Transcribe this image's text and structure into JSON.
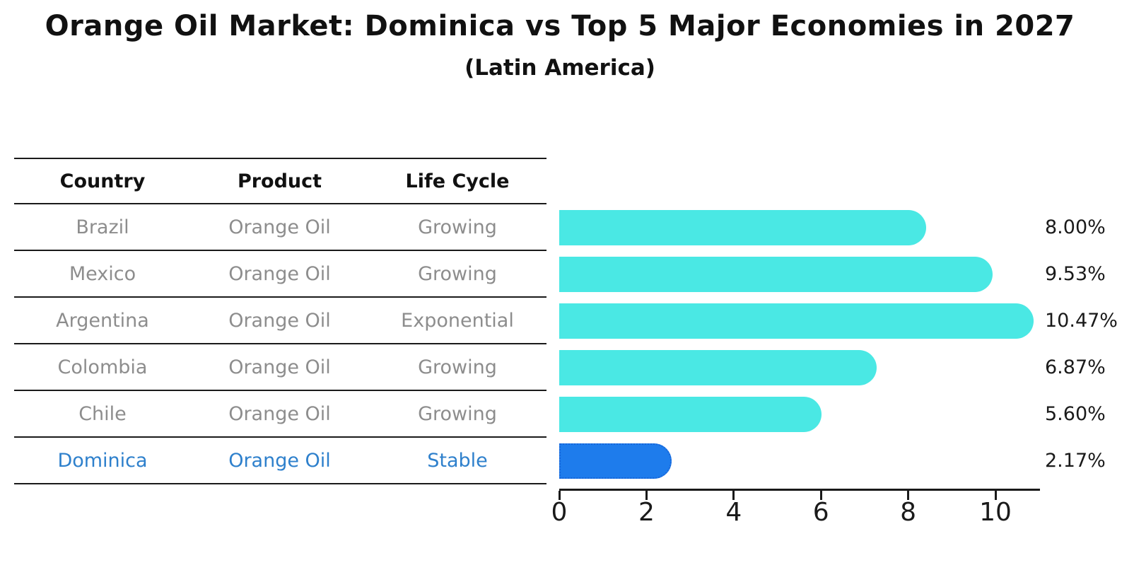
{
  "title": "Orange Oil Market: Dominica vs Top 5 Major Economies in 2027",
  "subtitle": "(Latin America)",
  "table": {
    "headers": [
      "Country",
      "Product",
      "Life Cycle"
    ],
    "rows": [
      {
        "country": "Brazil",
        "product": "Orange Oil",
        "life_cycle": "Growing",
        "highlight": false
      },
      {
        "country": "Mexico",
        "product": "Orange Oil",
        "life_cycle": "Growing",
        "highlight": false
      },
      {
        "country": "Argentina",
        "product": "Orange Oil",
        "life_cycle": "Exponential",
        "highlight": false
      },
      {
        "country": "Colombia",
        "product": "Orange Oil",
        "life_cycle": "Growing",
        "highlight": false
      },
      {
        "country": "Chile",
        "product": "Orange Oil",
        "life_cycle": "Growing",
        "highlight": false
      },
      {
        "country": "Dominica",
        "product": "Orange Oil",
        "life_cycle": "Stable",
        "highlight": true
      }
    ]
  },
  "chart_data": {
    "type": "bar",
    "orientation": "horizontal",
    "title": "Orange Oil Market: Dominica vs Top 5 Major Economies in 2027",
    "subtitle": "(Latin America)",
    "categories": [
      "Brazil",
      "Mexico",
      "Argentina",
      "Colombia",
      "Chile",
      "Dominica"
    ],
    "values": [
      8.0,
      9.53,
      10.47,
      6.87,
      5.6,
      2.17
    ],
    "value_labels": [
      "8.00%",
      "9.53%",
      "10.47%",
      "6.87%",
      "5.60%",
      "2.17%"
    ],
    "highlight_index": 5,
    "x_ticks": [
      "0",
      "2",
      "4",
      "6",
      "8",
      "10"
    ],
    "x_tick_values": [
      0,
      2,
      4,
      6,
      8,
      10
    ],
    "xlim": [
      0,
      11
    ],
    "grid": false,
    "legend": false
  },
  "colors": {
    "bar": "#4ae8e4",
    "highlight_bar": "#1e7cec",
    "highlight_border": "#1866d9",
    "highlight_text": "#2e80cc",
    "table_text": "#8d8d8d",
    "axis": "#1a1a1a"
  }
}
